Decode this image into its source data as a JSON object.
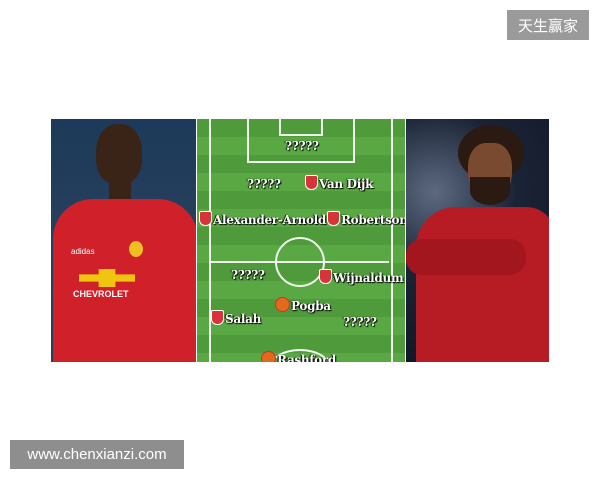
{
  "watermarks": {
    "top_right": "天生赢家",
    "bottom_left": "www.chenxianzi.com"
  },
  "left_photo": {
    "shirt_sponsor": "CHEVROLET",
    "kit_brand": "adidas",
    "shirt_color": "#d0202a"
  },
  "right_photo": {
    "shirt_color": "#b71c24"
  },
  "pitch": {
    "colors": {
      "grass_dark": "#4f9a3a",
      "grass_light": "#5aa844"
    },
    "players": [
      {
        "name": "?????",
        "badge": null
      },
      {
        "name": "?????",
        "badge": null
      },
      {
        "name": "Van Dijk",
        "badge": "liverpool-badge"
      },
      {
        "name": "Alexander-Arnold",
        "badge": "liverpool-badge"
      },
      {
        "name": "Robertson",
        "badge": "liverpool-badge"
      },
      {
        "name": "?????",
        "badge": null
      },
      {
        "name": "Wijnaldum",
        "badge": "liverpool-badge"
      },
      {
        "name": "Pogba",
        "badge": "man-utd-badge"
      },
      {
        "name": "Salah",
        "badge": "liverpool-badge"
      },
      {
        "name": "?????",
        "badge": null
      },
      {
        "name": "Rashford",
        "badge": "man-utd-badge"
      }
    ]
  }
}
